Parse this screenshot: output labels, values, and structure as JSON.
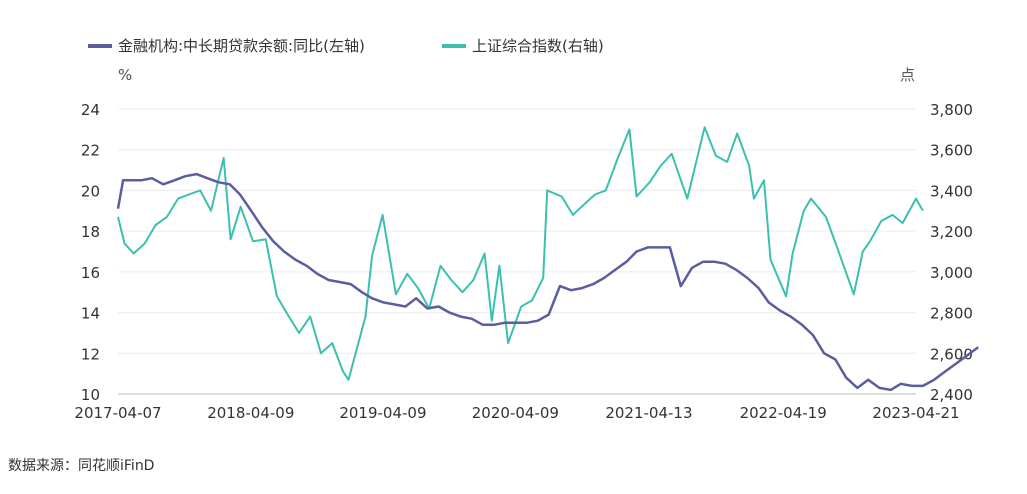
{
  "chart_data": {
    "type": "line",
    "legend_position": "top-left",
    "grid": true,
    "left_axis": {
      "unit": "%",
      "ylim": [
        10,
        24
      ],
      "ticks": [
        "10",
        "12",
        "14",
        "16",
        "18",
        "20",
        "22",
        "24"
      ]
    },
    "right_axis": {
      "unit": "点",
      "ylim": [
        2400,
        3800
      ],
      "ticks": [
        "2,400",
        "2,600",
        "2,800",
        "3,000",
        "3,200",
        "3,400",
        "3,600",
        "3,800"
      ]
    },
    "x_axis": {
      "ticks": [
        "2017-04-07",
        "2018-04-09",
        "2019-04-09",
        "2020-04-09",
        "2021-04-13",
        "2022-04-19",
        "2023-04-21"
      ]
    },
    "source": "数据来源：同花顺iFinD",
    "series": [
      {
        "name": "金融机构:中长期贷款余额:同比(左轴)",
        "axis": "left",
        "color": "#5b5e9e",
        "points": [
          [
            "2017-04-07",
            19.1
          ],
          [
            "2017-04-21",
            20.5
          ],
          [
            "2017-06-10",
            20.5
          ],
          [
            "2017-07-10",
            20.6
          ],
          [
            "2017-08-10",
            20.3
          ],
          [
            "2017-09-10",
            20.5
          ],
          [
            "2017-10-10",
            20.7
          ],
          [
            "2017-11-10",
            20.8
          ],
          [
            "2017-12-10",
            20.6
          ],
          [
            "2018-01-10",
            20.4
          ],
          [
            "2018-02-10",
            20.3
          ],
          [
            "2018-03-10",
            19.8
          ],
          [
            "2018-04-10",
            19.0
          ],
          [
            "2018-05-10",
            18.2
          ],
          [
            "2018-06-10",
            17.5
          ],
          [
            "2018-07-10",
            17.0
          ],
          [
            "2018-08-10",
            16.6
          ],
          [
            "2018-09-10",
            16.3
          ],
          [
            "2018-10-10",
            15.9
          ],
          [
            "2018-11-10",
            15.6
          ],
          [
            "2018-12-10",
            15.5
          ],
          [
            "2019-01-10",
            15.4
          ],
          [
            "2019-02-10",
            15.0
          ],
          [
            "2019-03-10",
            14.7
          ],
          [
            "2019-04-10",
            14.5
          ],
          [
            "2019-05-10",
            14.4
          ],
          [
            "2019-06-10",
            14.3
          ],
          [
            "2019-07-10",
            14.7
          ],
          [
            "2019-08-10",
            14.2
          ],
          [
            "2019-09-10",
            14.3
          ],
          [
            "2019-10-10",
            14.0
          ],
          [
            "2019-11-10",
            13.8
          ],
          [
            "2019-12-10",
            13.7
          ],
          [
            "2020-01-10",
            13.4
          ],
          [
            "2020-02-10",
            13.4
          ],
          [
            "2020-03-10",
            13.5
          ],
          [
            "2020-05-10",
            13.5
          ],
          [
            "2020-06-10",
            13.6
          ],
          [
            "2020-07-10",
            13.9
          ],
          [
            "2020-08-10",
            15.3
          ],
          [
            "2020-09-10",
            15.1
          ],
          [
            "2020-10-10",
            15.2
          ],
          [
            "2020-11-10",
            15.4
          ],
          [
            "2020-12-10",
            15.7
          ],
          [
            "2021-01-10",
            16.1
          ],
          [
            "2021-02-10",
            16.5
          ],
          [
            "2021-03-10",
            17.0
          ],
          [
            "2021-04-10",
            17.2
          ],
          [
            "2021-05-10",
            17.2
          ],
          [
            "2021-06-10",
            17.2
          ],
          [
            "2021-07-10",
            15.3
          ],
          [
            "2021-08-10",
            16.2
          ],
          [
            "2021-09-10",
            16.5
          ],
          [
            "2021-10-10",
            16.5
          ],
          [
            "2021-11-10",
            16.4
          ],
          [
            "2021-12-10",
            16.1
          ],
          [
            "2022-01-10",
            15.7
          ],
          [
            "2022-02-10",
            15.2
          ],
          [
            "2022-03-10",
            14.5
          ],
          [
            "2022-04-10",
            14.1
          ],
          [
            "2022-05-10",
            13.8
          ],
          [
            "2022-06-10",
            13.4
          ],
          [
            "2022-07-10",
            12.9
          ],
          [
            "2022-08-10",
            12.0
          ],
          [
            "2022-09-10",
            11.7
          ],
          [
            "2022-10-10",
            10.8
          ],
          [
            "2022-11-10",
            10.3
          ],
          [
            "2022-12-10",
            10.7
          ],
          [
            "2023-01-10",
            10.3
          ],
          [
            "2023-02-10",
            10.2
          ],
          [
            "2023-03-10",
            10.5
          ],
          [
            "2023-04-10",
            10.4
          ],
          [
            "2023-05-10",
            10.4
          ],
          [
            "2023-06-10",
            10.7
          ],
          [
            "2023-07-10",
            11.1
          ],
          [
            "2023-08-10",
            11.5
          ],
          [
            "2023-09-10",
            11.9
          ],
          [
            "2023-10-10",
            12.3
          ]
        ]
      },
      {
        "name": "上证综合指数(右轴)",
        "axis": "right",
        "color": "#3dbfb0",
        "points": [
          [
            "2017-04-07",
            3270
          ],
          [
            "2017-04-25",
            3140
          ],
          [
            "2017-05-20",
            3090
          ],
          [
            "2017-06-20",
            3140
          ],
          [
            "2017-07-20",
            3230
          ],
          [
            "2017-08-20",
            3270
          ],
          [
            "2017-09-20",
            3360
          ],
          [
            "2017-10-20",
            3380
          ],
          [
            "2017-11-20",
            3400
          ],
          [
            "2017-12-20",
            3300
          ],
          [
            "2018-01-24",
            3560
          ],
          [
            "2018-02-12",
            3160
          ],
          [
            "2018-03-12",
            3320
          ],
          [
            "2018-04-15",
            3150
          ],
          [
            "2018-05-20",
            3160
          ],
          [
            "2018-06-20",
            2880
          ],
          [
            "2018-07-20",
            2790
          ],
          [
            "2018-08-20",
            2700
          ],
          [
            "2018-09-20",
            2780
          ],
          [
            "2018-10-20",
            2600
          ],
          [
            "2018-11-20",
            2650
          ],
          [
            "2018-12-20",
            2510
          ],
          [
            "2019-01-04",
            2470
          ],
          [
            "2019-02-20",
            2780
          ],
          [
            "2019-03-10",
            3080
          ],
          [
            "2019-04-08",
            3280
          ],
          [
            "2019-05-15",
            2890
          ],
          [
            "2019-06-15",
            2990
          ],
          [
            "2019-07-15",
            2920
          ],
          [
            "2019-08-15",
            2820
          ],
          [
            "2019-09-15",
            3030
          ],
          [
            "2019-10-15",
            2960
          ],
          [
            "2019-11-15",
            2900
          ],
          [
            "2019-12-15",
            2960
          ],
          [
            "2020-01-15",
            3090
          ],
          [
            "2020-02-04",
            2760
          ],
          [
            "2020-02-25",
            3030
          ],
          [
            "2020-03-20",
            2650
          ],
          [
            "2020-04-25",
            2830
          ],
          [
            "2020-05-25",
            2860
          ],
          [
            "2020-06-25",
            2970
          ],
          [
            "2020-07-06",
            3400
          ],
          [
            "2020-08-15",
            3370
          ],
          [
            "2020-09-15",
            3280
          ],
          [
            "2020-10-15",
            3330
          ],
          [
            "2020-11-15",
            3380
          ],
          [
            "2020-12-15",
            3400
          ],
          [
            "2021-01-15",
            3550
          ],
          [
            "2021-02-18",
            3700
          ],
          [
            "2021-03-10",
            3370
          ],
          [
            "2021-04-15",
            3440
          ],
          [
            "2021-05-15",
            3520
          ],
          [
            "2021-06-15",
            3580
          ],
          [
            "2021-07-28",
            3360
          ],
          [
            "2021-09-14",
            3710
          ],
          [
            "2021-10-15",
            3570
          ],
          [
            "2021-11-15",
            3540
          ],
          [
            "2021-12-13",
            3680
          ],
          [
            "2022-01-15",
            3520
          ],
          [
            "2022-01-28",
            3360
          ],
          [
            "2022-02-25",
            3450
          ],
          [
            "2022-03-15",
            3060
          ],
          [
            "2022-04-27",
            2880
          ],
          [
            "2022-05-15",
            3090
          ],
          [
            "2022-06-15",
            3300
          ],
          [
            "2022-07-05",
            3360
          ],
          [
            "2022-08-15",
            3270
          ],
          [
            "2022-09-15",
            3120
          ],
          [
            "2022-10-31",
            2890
          ],
          [
            "2022-11-25",
            3100
          ],
          [
            "2022-12-15",
            3150
          ],
          [
            "2023-01-15",
            3250
          ],
          [
            "2023-02-15",
            3280
          ],
          [
            "2023-03-15",
            3240
          ],
          [
            "2023-04-21",
            3360
          ],
          [
            "2023-05-10",
            3300
          ]
        ]
      }
    ]
  }
}
